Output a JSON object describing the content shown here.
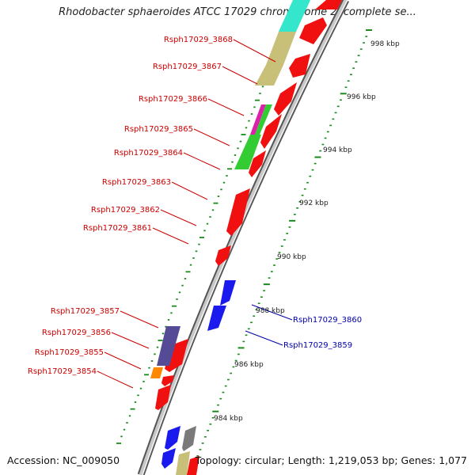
{
  "title": "Rhodobacter sphaeroides ATCC 17029 chromosome 2, complete se...",
  "footer": {
    "accession": "Accession: NC_009050",
    "summary": "Topology: circular; Length: 1,219,053 bp; Genes: 1,077"
  },
  "colors": {
    "red_gene": "#f01010",
    "blue_gene": "#1a1aee",
    "green_gene": "#33cc33",
    "teal_gene": "#33e6cc",
    "cyan_gene": "#22c4d6",
    "khaki_gene": "#c8bf78",
    "purple_gene": "#554a96",
    "orange_gene": "#ff8800",
    "magenta_gene": "#dd22aa",
    "gray_gene": "#7a7a7a",
    "backbone": "#8a8a8a",
    "tick": "#1a8a1a",
    "label_red": "#cc0000",
    "label_blue": "#0000aa"
  },
  "scale_labels": [
    "998 kbp",
    "996 kbp",
    "994 kbp",
    "992 kbp",
    "990 kbp",
    "988 kbp",
    "986 kbp",
    "984 kbp"
  ],
  "left_labels": [
    "Rsph17029_3868",
    "Rsph17029_3867",
    "Rsph17029_3866",
    "Rsph17029_3865",
    "Rsph17029_3864",
    "Rsph17029_3863",
    "Rsph17029_3862",
    "Rsph17029_3861",
    "Rsph17029_3857",
    "Rsph17029_3856",
    "Rsph17029_3855",
    "Rsph17029_3854"
  ],
  "right_labels": [
    "Rsph17029_3860",
    "Rsph17029_3859"
  ]
}
